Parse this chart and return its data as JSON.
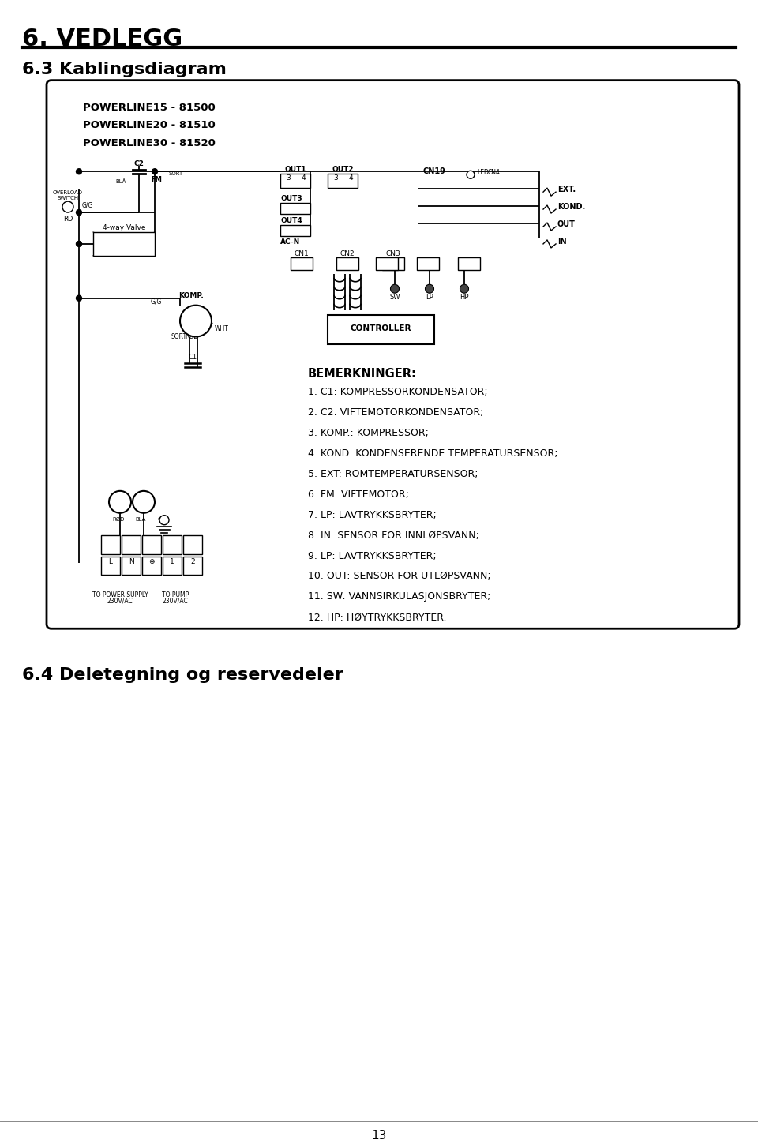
{
  "title1": "6. VEDLEGG",
  "title2": "6.3 Kablingsdiagram",
  "title3": "6.4 Deletegning og reservedeler",
  "powerline_lines": [
    "POWERLINE15 - 81500",
    "POWERLINE20 - 81510",
    "POWERLINE30 - 81520"
  ],
  "bemerkninger_title": "BEMERKNINGER:",
  "notes": [
    "1. C1: KOMPRESSORKONDENSATOR;",
    "2. C2: VIFTEMOTORKONDENSATOR;",
    "3. KOMP.: KOMPRESSOR;",
    "4. KOND. KONDENSERENDE TEMPERATURSENSOR;",
    "5. EXT: ROMTEMPERATURSENSOR;",
    "6. FM: VIFTEMOTOR;",
    "7. LP: LAVTRYKKSBRYTER;",
    "8. IN: SENSOR FOR INNLØPSVANN;",
    "9. LP: LAVTRYKKSBRYTER;",
    "10. OUT: SENSOR FOR UTLØPSVANN;",
    "11. SW: VANNSIRKULASJONSBRYTER;",
    "12. HP: HØYTRYKKSBRYTER."
  ],
  "bg_color": "#ffffff",
  "border_color": "#000000",
  "text_color": "#000000",
  "page_number": "13",
  "fig_w": 9.6,
  "fig_h": 14.49,
  "dpi": 100
}
